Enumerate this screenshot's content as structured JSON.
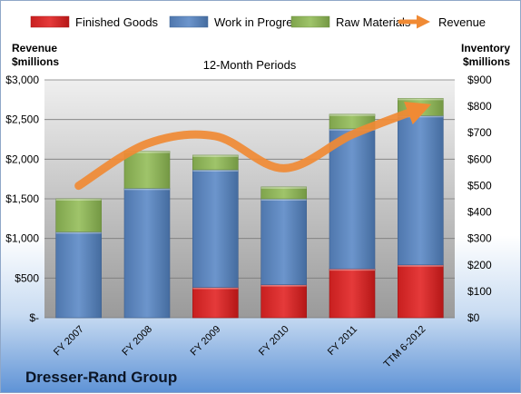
{
  "company": "Dresser-Rand Group",
  "chart_data": {
    "type": "bar",
    "subtitle": "12-Month Periods",
    "categories": [
      "FY 2007",
      "FY 2008",
      "FY 2009",
      "FY 2010",
      "FY 2011",
      "TTM 6-2012"
    ],
    "stacked": true,
    "series": [
      {
        "name": "Finished Goods",
        "axis": "right",
        "color": "#d22b2b",
        "values": [
          0,
          0,
          115,
          125,
          185,
          200
        ]
      },
      {
        "name": "Work in Progress",
        "axis": "right",
        "color": "#5b84bd",
        "values": [
          325,
          490,
          445,
          325,
          530,
          565
        ]
      },
      {
        "name": "Raw Materials",
        "axis": "right",
        "color": "#8db35a",
        "values": [
          125,
          140,
          55,
          45,
          55,
          65
        ]
      },
      {
        "name": "Revenue",
        "axis": "left",
        "type": "line",
        "color": "#f08a34",
        "values": [
          1665,
          2195,
          2290,
          1885,
          2310,
          2640
        ]
      }
    ],
    "left_axis": {
      "label_line1": "Revenue",
      "label_line2": "$millions",
      "ylim": [
        0,
        3000
      ],
      "ticks": [
        "$-",
        "$500",
        "$1,000",
        "$1,500",
        "$2,000",
        "$2,500",
        "$3,000"
      ]
    },
    "right_axis": {
      "label_line1": "Inventory",
      "label_line2": "$millions",
      "ylim": [
        0,
        900
      ],
      "ticks": [
        "$0",
        "$100",
        "$200",
        "$300",
        "$400",
        "$500",
        "$600",
        "$700",
        "$800",
        "$900"
      ]
    },
    "legend_position": "top",
    "grid": true
  }
}
